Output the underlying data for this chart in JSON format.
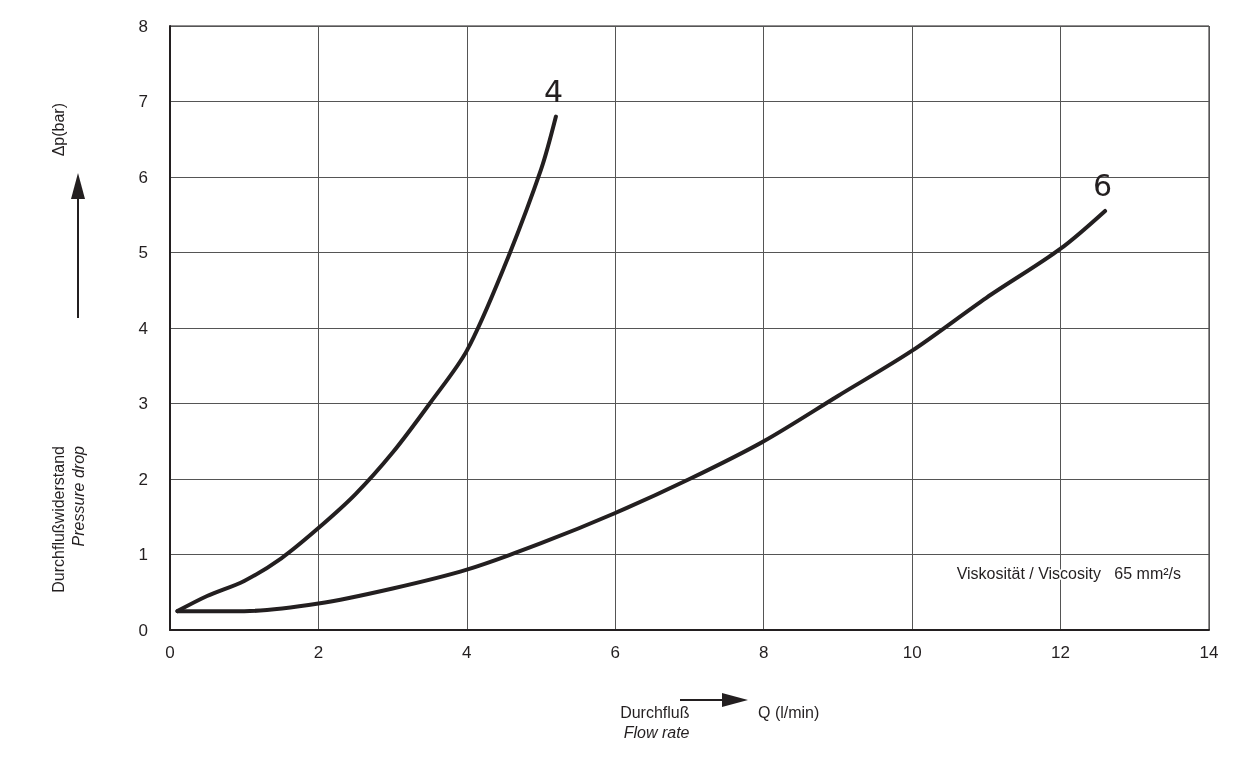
{
  "chart_data": {
    "type": "line",
    "xlabel": "Durchfluß\nFlow rate",
    "ylabel": "Durchflußwiderstand\nPressure drop",
    "annotations": [
      "Viskosität / Viscosity   65 mm²/s",
      "Δp(bar)",
      "Q (l/min)"
    ],
    "xlim": [
      0,
      14
    ],
    "xticks": [
      0,
      2,
      4,
      6,
      8,
      10,
      12,
      14
    ],
    "ylim": [
      0,
      8
    ],
    "yticks": [
      0,
      1,
      2,
      3,
      4,
      5,
      6,
      7,
      8
    ],
    "grid": true,
    "legend": false,
    "marker": "none",
    "line_style": "solid",
    "series": [
      {
        "name": "4",
        "color": "#231f20",
        "x": [
          0.1,
          0.5,
          1,
          1.5,
          2,
          2.5,
          3,
          3.5,
          4,
          4.5,
          5,
          5.2
        ],
        "values": [
          0.25,
          0.45,
          0.65,
          0.95,
          1.35,
          1.8,
          2.35,
          3.0,
          3.7,
          4.8,
          6.1,
          6.8
        ]
      },
      {
        "name": "6",
        "color": "#231f20",
        "x": [
          0.1,
          1,
          2,
          3,
          4,
          5,
          6,
          7,
          8,
          9,
          10,
          11,
          12,
          12.6
        ],
        "values": [
          0.25,
          0.25,
          0.35,
          0.55,
          0.8,
          1.15,
          1.55,
          2.0,
          2.5,
          3.1,
          3.7,
          4.4,
          5.05,
          5.55
        ]
      }
    ]
  }
}
